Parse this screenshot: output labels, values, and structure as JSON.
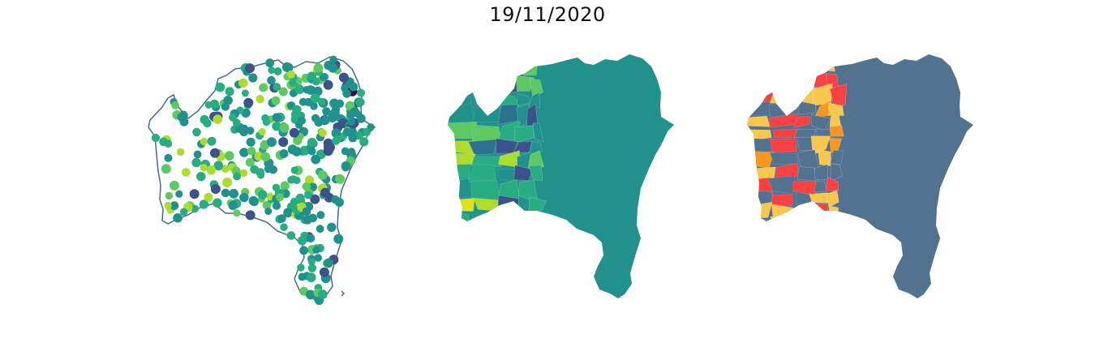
{
  "figure": {
    "title": "19/11/2020",
    "panels": [
      {
        "kind": "points",
        "outline_color": "#4a6a8a",
        "palette": [
          "#440154",
          "#3b528b",
          "#21918c",
          "#27ad81",
          "#5ec962",
          "#addc30"
        ]
      },
      {
        "kind": "choropleth",
        "palette": [
          "#440154",
          "#3b528b",
          "#2c728e",
          "#21918c",
          "#27ad81",
          "#5ec962",
          "#addc30",
          "#dde318"
        ]
      },
      {
        "kind": "choropleth",
        "palette": [
          "#52728f",
          "#f9c74f",
          "#f94144",
          "#f8961e"
        ]
      }
    ]
  }
}
